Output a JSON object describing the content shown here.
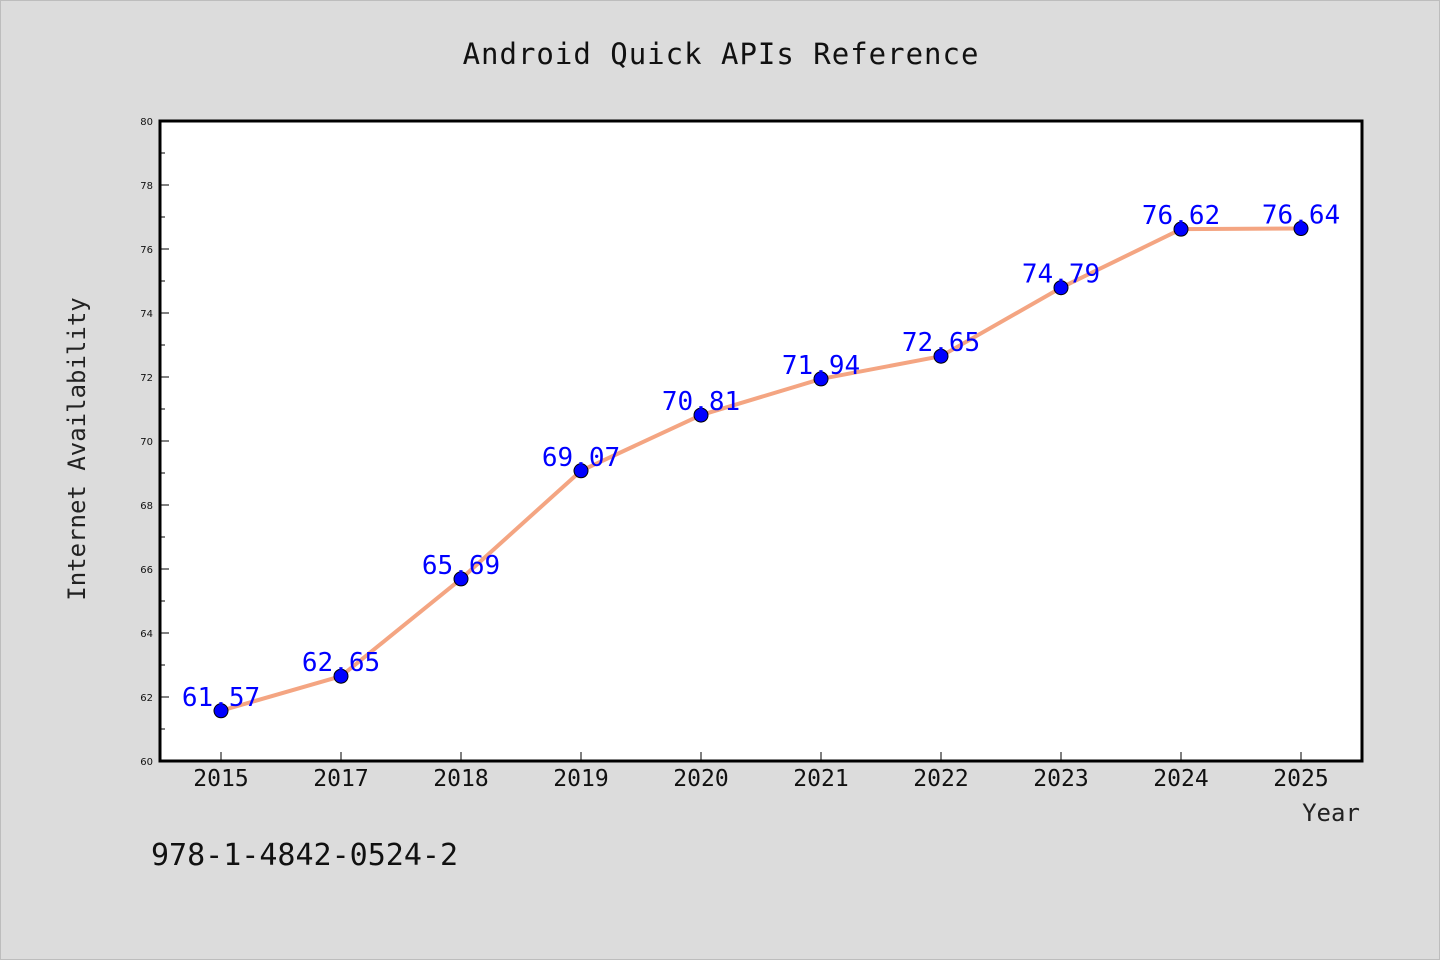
{
  "chart_data": {
    "type": "line",
    "title": "Android Quick APIs Reference",
    "xlabel": "Year",
    "ylabel": "Internet Availability",
    "categories": [
      "2015",
      "2017",
      "2018",
      "2019",
      "2020",
      "2021",
      "2022",
      "2023",
      "2024",
      "2025"
    ],
    "series": [
      {
        "values": [
          61.57,
          62.65,
          65.69,
          69.07,
          70.81,
          71.94,
          72.65,
          74.79,
          76.62,
          76.64
        ],
        "labels": [
          "61.57",
          "62.65",
          "65.69",
          "69.07",
          "70.81",
          "71.94",
          "72.65",
          "74.79",
          "76.62",
          "76.64"
        ]
      }
    ],
    "ylim": [
      60,
      80
    ],
    "yticks": [
      "60",
      "62",
      "64",
      "66",
      "68",
      "70",
      "72",
      "74",
      "76",
      "78",
      "80"
    ],
    "grid": false,
    "line_color": "#f4a582",
    "marker_color": "#0000ff",
    "label_color": "#0000ff",
    "background_color": "#dcdcdc",
    "plot_background": "#ffffff"
  },
  "footer": {
    "isbn": "978-1-4842-0524-2"
  }
}
